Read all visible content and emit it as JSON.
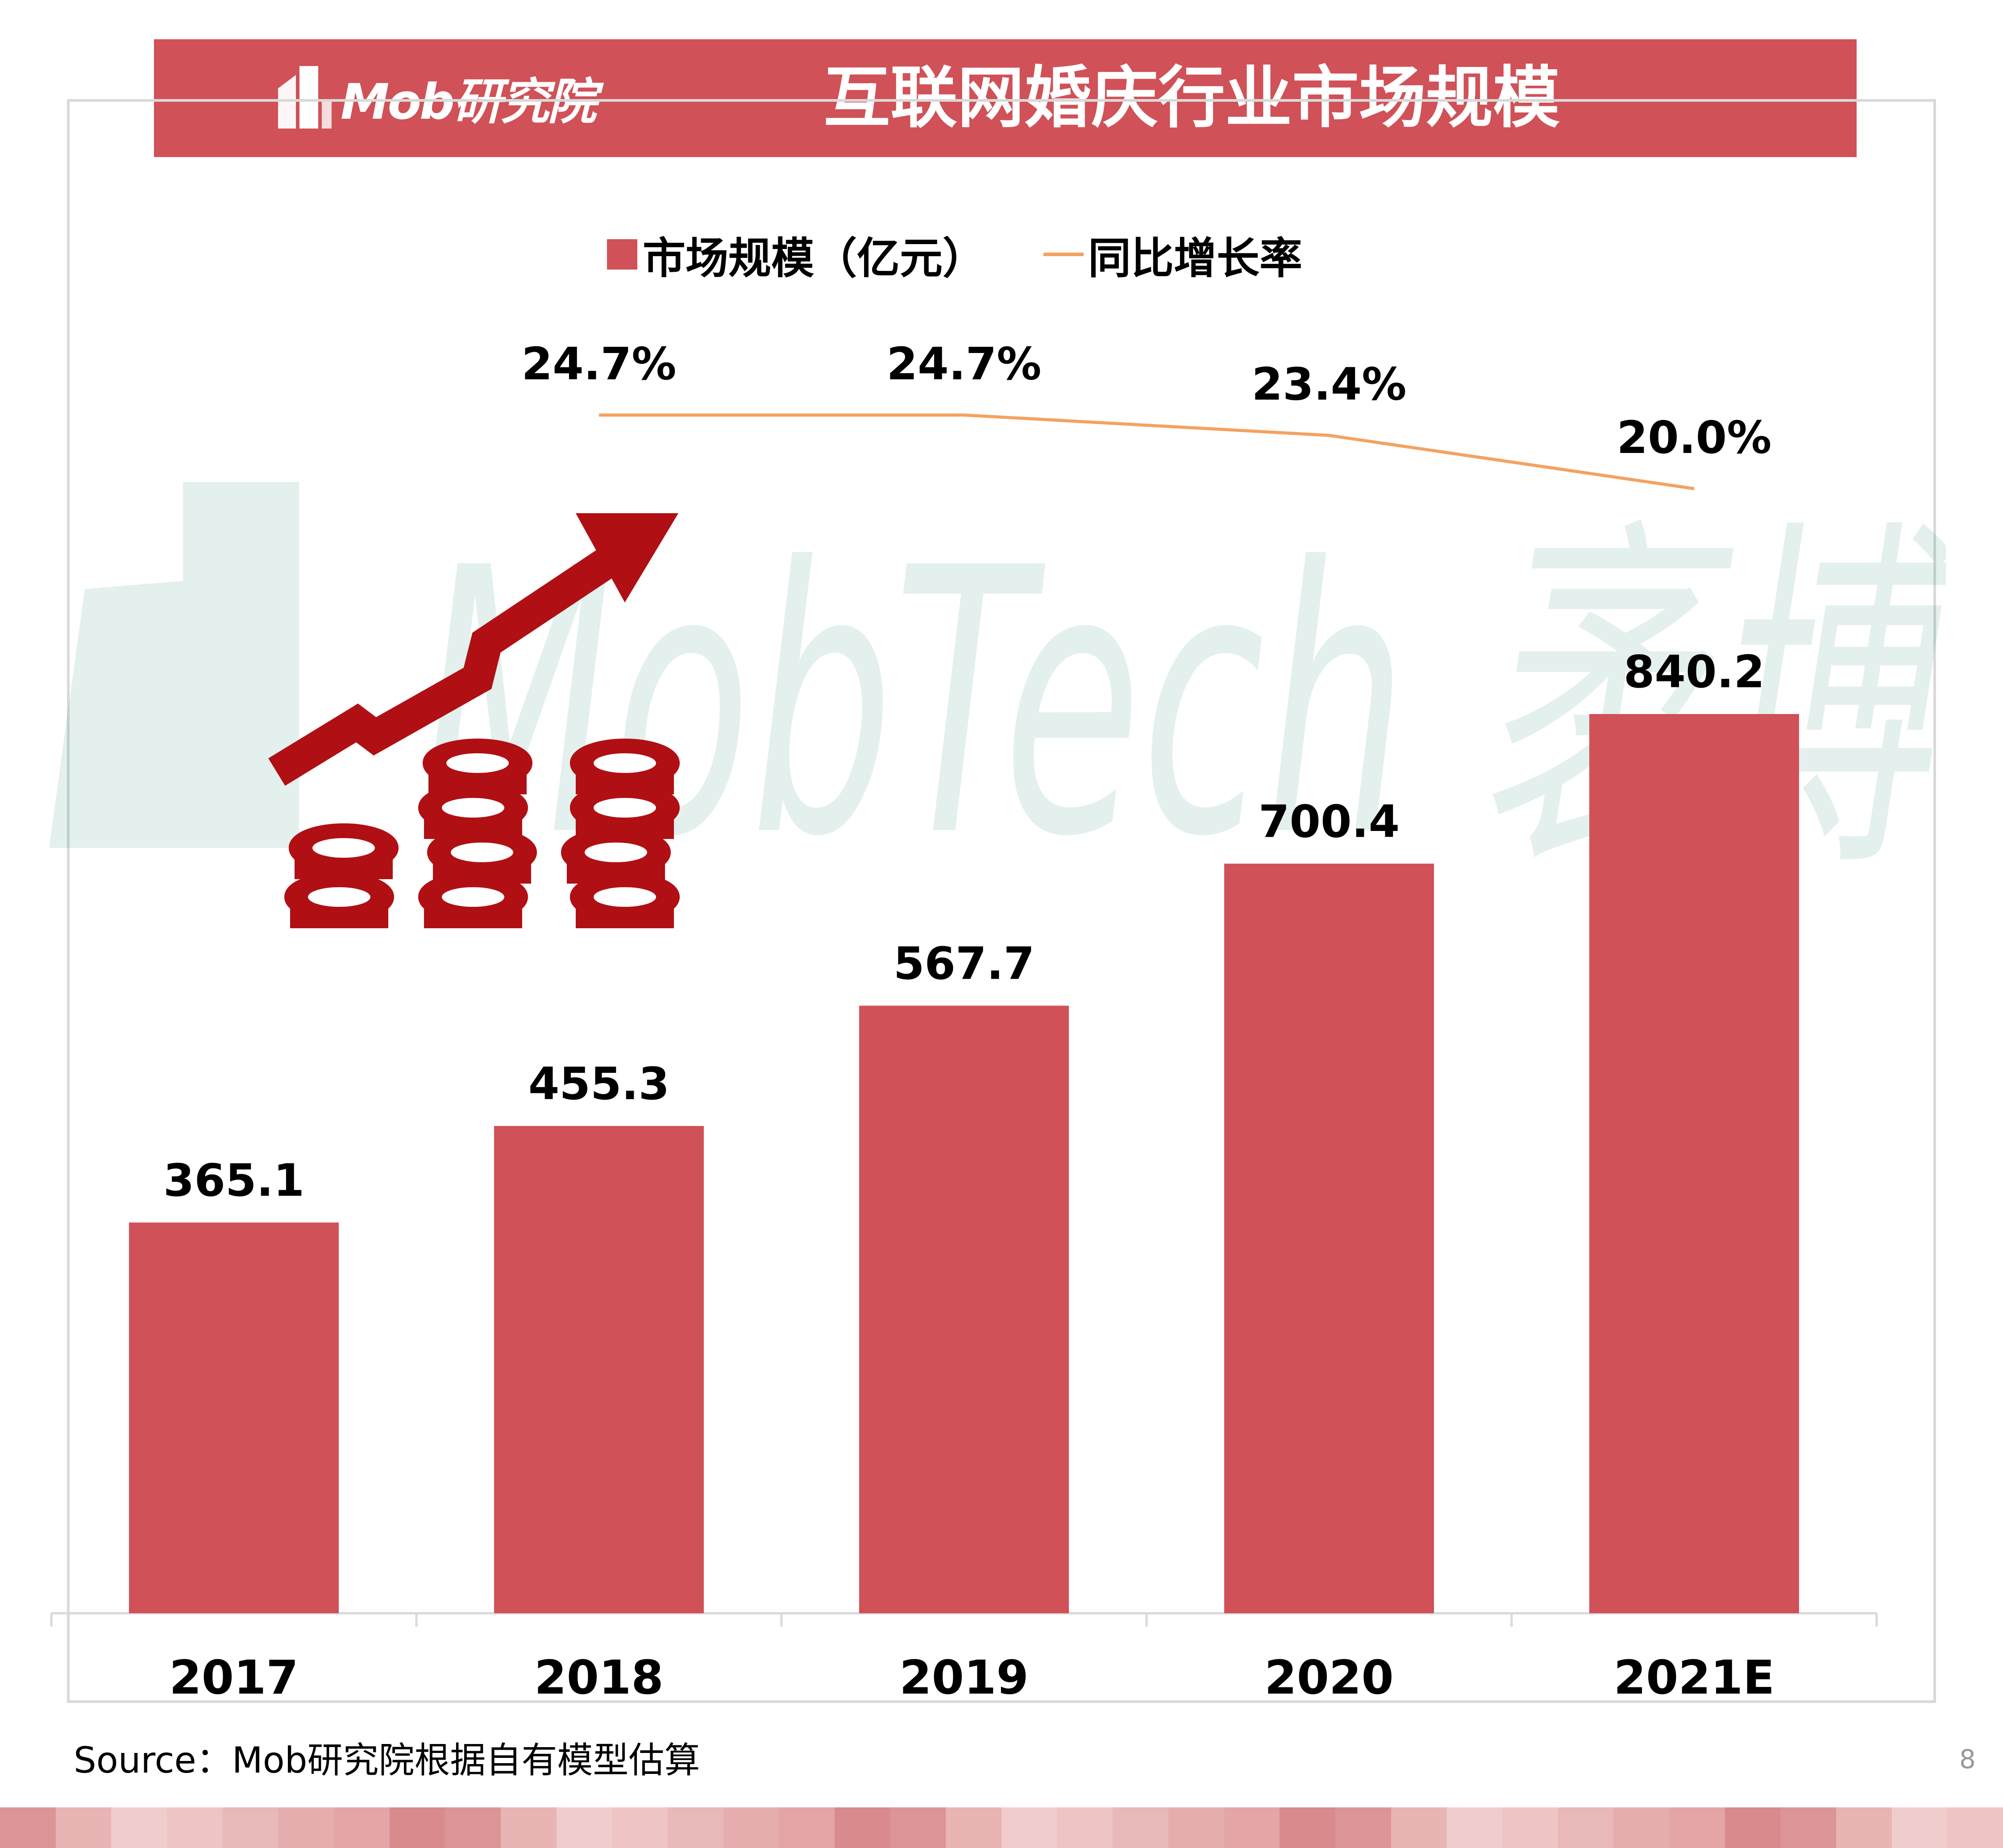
{
  "header": {
    "logo_text": "Mob研究院",
    "title": "互联网婚庆行业市场规模"
  },
  "legend": {
    "bar_label": "市场规模（亿元）",
    "line_label": "同比增长率"
  },
  "colors": {
    "bar": "#d05157",
    "line": "#f4a261",
    "header_bg": "#d05157",
    "icon": "#b00f14"
  },
  "watermark_text": "MobTech 袤博",
  "chart_data": {
    "type": "bar",
    "categories": [
      "2017",
      "2018",
      "2019",
      "2020",
      "2021E"
    ],
    "series": [
      {
        "name": "市场规模（亿元）",
        "type": "bar",
        "values": [
          365.1,
          455.3,
          567.7,
          700.4,
          840.2
        ],
        "labels": [
          "365.1",
          "455.3",
          "567.7",
          "700.4",
          "840.2"
        ]
      },
      {
        "name": "同比增长率",
        "type": "line",
        "values": [
          null,
          24.7,
          24.7,
          23.4,
          20.0
        ],
        "labels": [
          "",
          "24.7%",
          "24.7%",
          "23.4%",
          "20.0%"
        ]
      }
    ],
    "title": "互联网婚庆行业市场规模",
    "legend_position": "top",
    "grid": false
  },
  "source": "Source：Mob研究院根据自有模型估算",
  "page_number": "8",
  "icons": [
    "growth-arrow-icon",
    "coin-stacks-icon",
    "mob-logo-icon"
  ]
}
